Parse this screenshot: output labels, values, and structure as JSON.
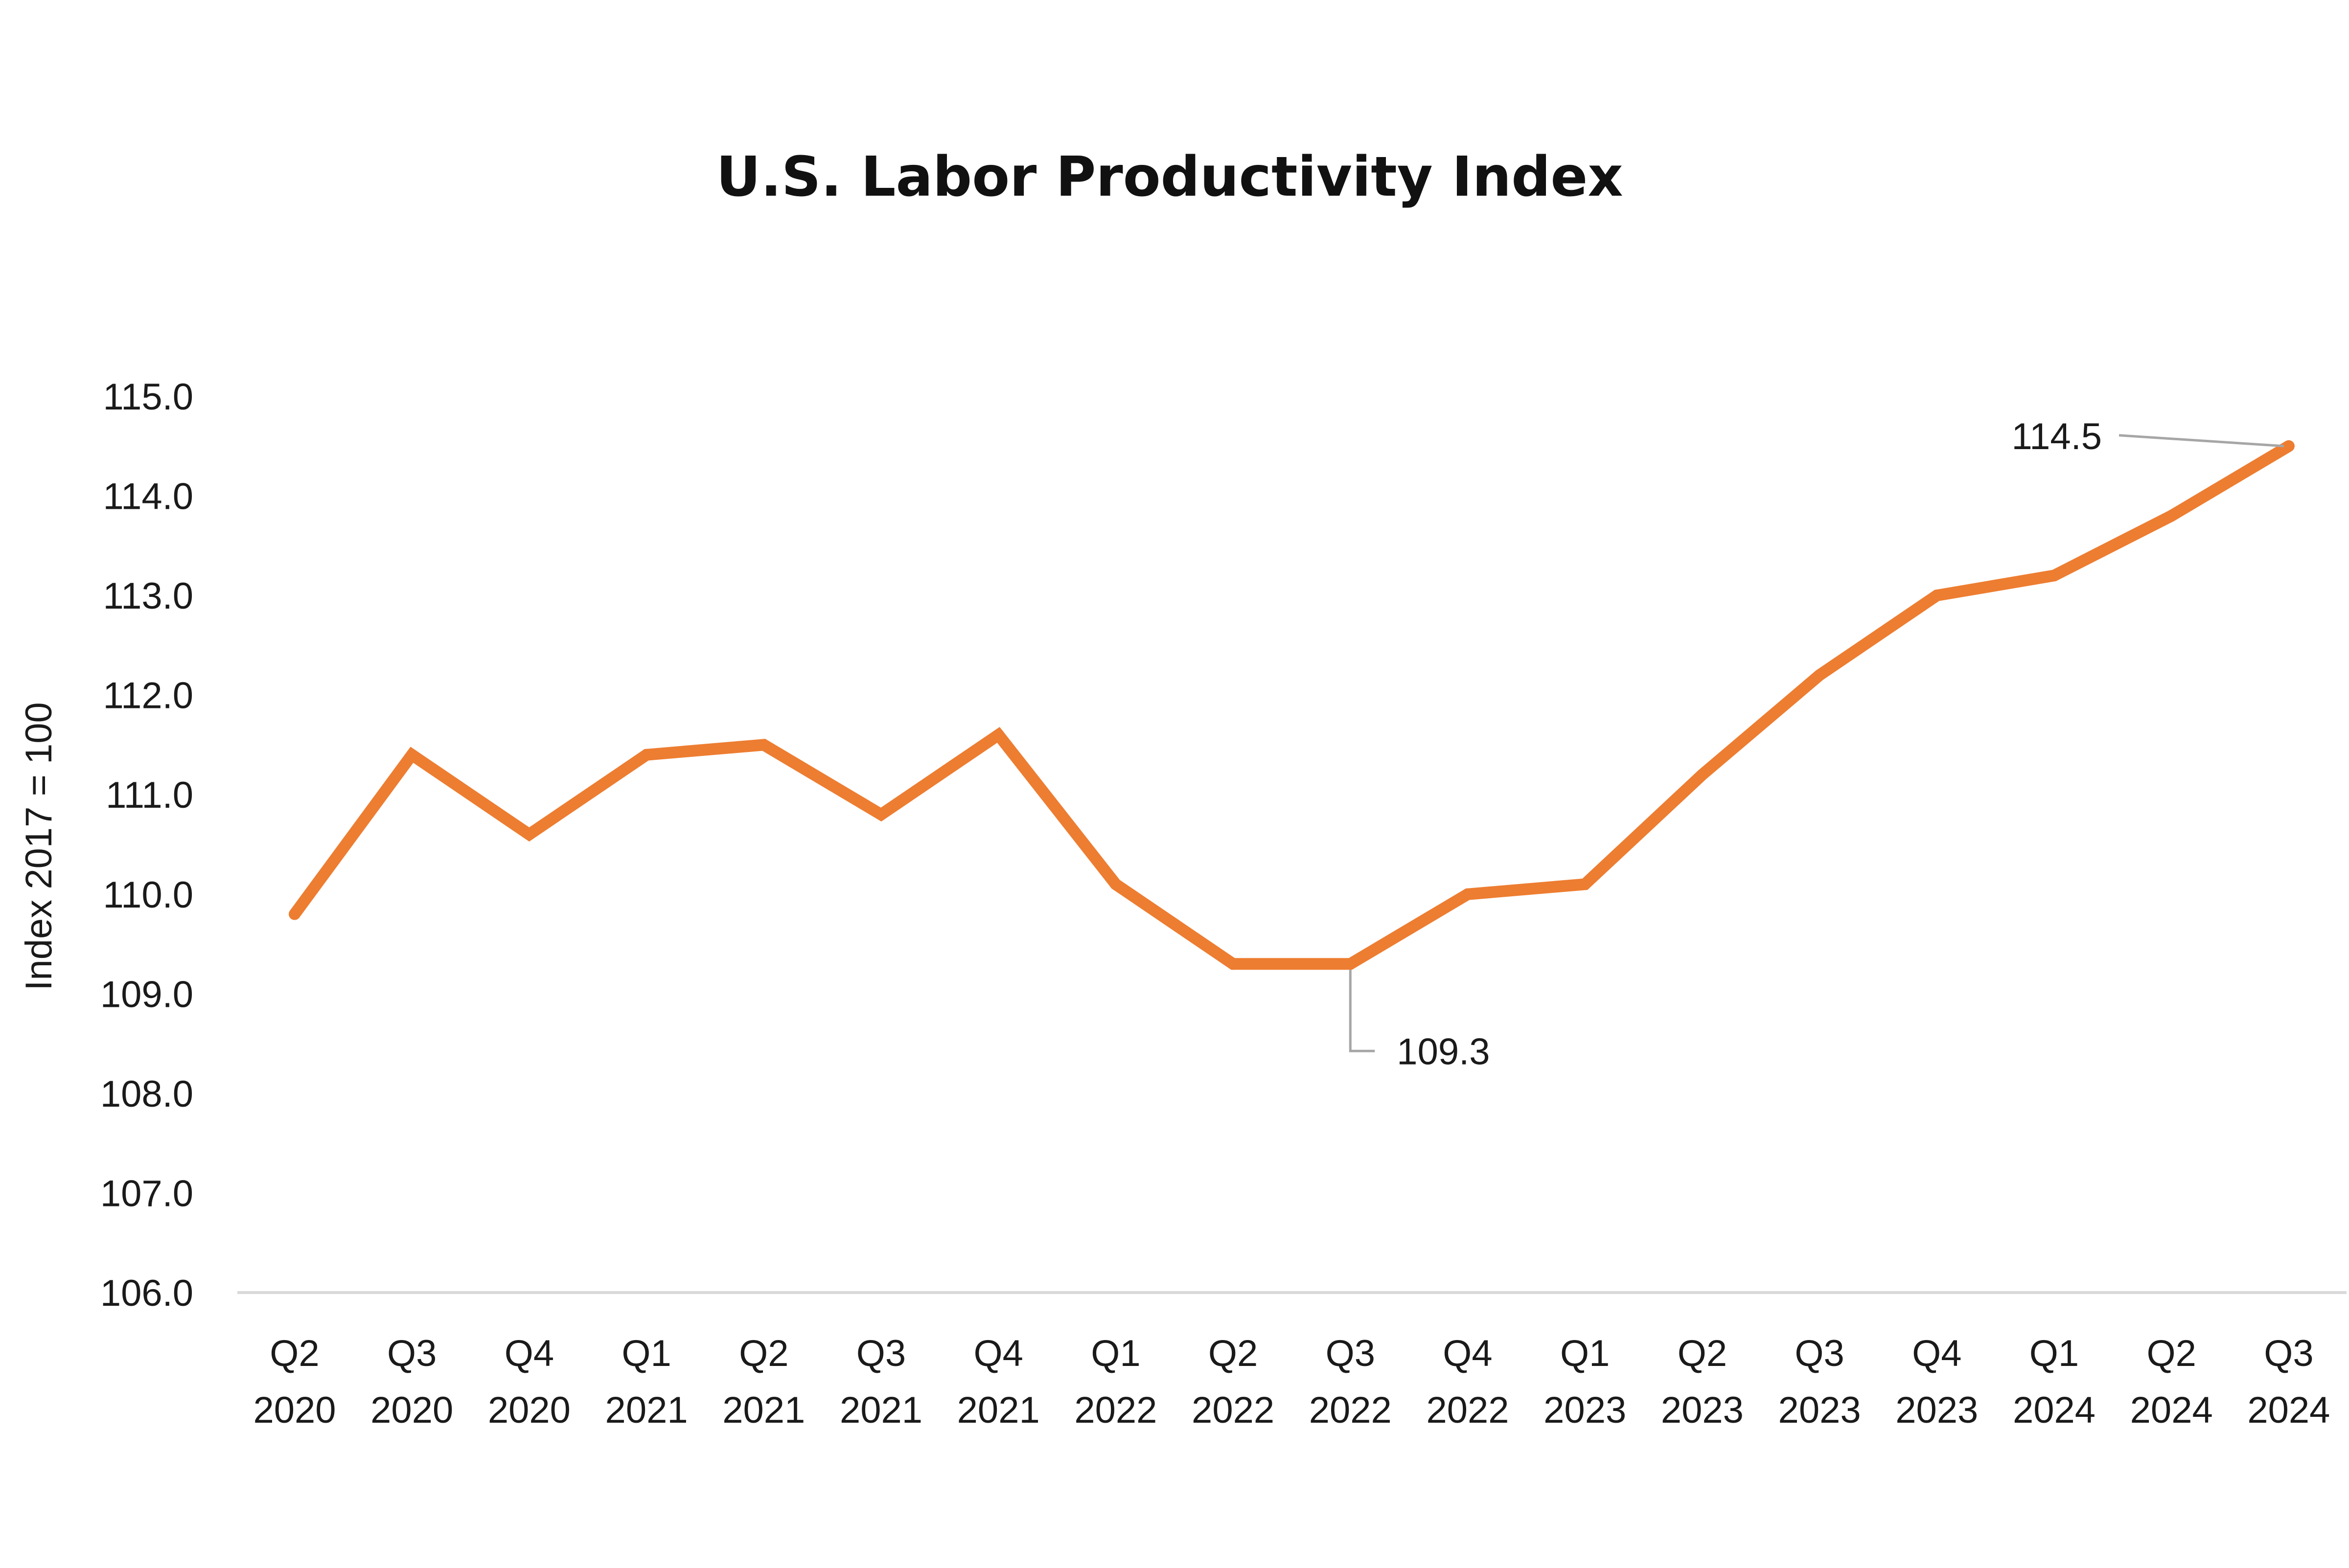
{
  "chart_data": {
    "type": "line",
    "title": "U.S. Labor Productivity Index",
    "xlabel": "",
    "ylabel": "Index 2017 = 100",
    "ylim": [
      106.0,
      115.0
    ],
    "yticks": [
      "106.0",
      "107.0",
      "108.0",
      "109.0",
      "110.0",
      "111.0",
      "112.0",
      "113.0",
      "114.0",
      "115.0"
    ],
    "categories": [
      [
        "Q2",
        "2020"
      ],
      [
        "Q3",
        "2020"
      ],
      [
        "Q4",
        "2020"
      ],
      [
        "Q1",
        "2021"
      ],
      [
        "Q2",
        "2021"
      ],
      [
        "Q3",
        "2021"
      ],
      [
        "Q4",
        "2021"
      ],
      [
        "Q1",
        "2022"
      ],
      [
        "Q2",
        "2022"
      ],
      [
        "Q3",
        "2022"
      ],
      [
        "Q4",
        "2022"
      ],
      [
        "Q1",
        "2023"
      ],
      [
        "Q2",
        "2023"
      ],
      [
        "Q3",
        "2023"
      ],
      [
        "Q4",
        "2023"
      ],
      [
        "Q1",
        "2024"
      ],
      [
        "Q2",
        "2024"
      ],
      [
        "Q3",
        "2024"
      ]
    ],
    "series": [
      {
        "color": "#ED7D31",
        "values": [
          109.8,
          111.4,
          110.6,
          111.4,
          111.5,
          110.8,
          111.6,
          110.1,
          109.3,
          109.3,
          110.0,
          110.1,
          111.2,
          112.2,
          113.0,
          113.2,
          113.8,
          114.5
        ]
      }
    ],
    "annotations": [
      {
        "index": 9,
        "text": "109.3"
      },
      {
        "index": 17,
        "text": "114.5"
      }
    ],
    "grid": false,
    "legend": "none"
  }
}
